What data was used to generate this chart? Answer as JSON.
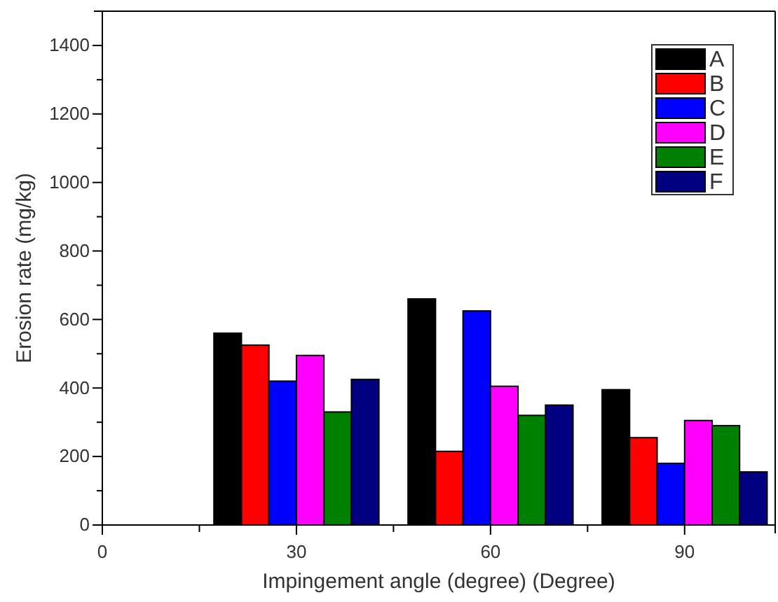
{
  "chart_data": {
    "type": "bar",
    "xlabel": "Impingement angle (degree) (Degree)",
    "ylabel": "Erosion rate (mg/kg)",
    "x": [
      30,
      60,
      90
    ],
    "series": [
      {
        "name": "A",
        "color": "#000000",
        "values": [
          560,
          660,
          395
        ]
      },
      {
        "name": "B",
        "color": "#ff0000",
        "values": [
          525,
          215,
          255
        ]
      },
      {
        "name": "C",
        "color": "#0000ff",
        "values": [
          420,
          625,
          180
        ]
      },
      {
        "name": "D",
        "color": "#ff00ff",
        "values": [
          495,
          405,
          305
        ]
      },
      {
        "name": "E",
        "color": "#008000",
        "values": [
          330,
          320,
          290
        ]
      },
      {
        "name": "F",
        "color": "#000080",
        "values": [
          425,
          350,
          155
        ]
      }
    ],
    "xlim": [
      0,
      104
    ],
    "xticks": [
      0,
      {
        "value": 15,
        "label": null
      },
      30,
      {
        "value": 45,
        "label": null
      },
      60,
      {
        "value": 75,
        "label": null
      },
      90
    ],
    "ylim": [
      0,
      1500
    ],
    "yticks": [
      0,
      {
        "value": 100,
        "label": null
      },
      200,
      {
        "value": 300,
        "label": null
      },
      400,
      {
        "value": 500,
        "label": null
      },
      600,
      {
        "value": 700,
        "label": null
      },
      800,
      {
        "value": 900,
        "label": null
      },
      1000,
      {
        "value": 1100,
        "label": null
      },
      1200,
      {
        "value": 1300,
        "label": null
      },
      1400
    ],
    "legend": "top right"
  }
}
